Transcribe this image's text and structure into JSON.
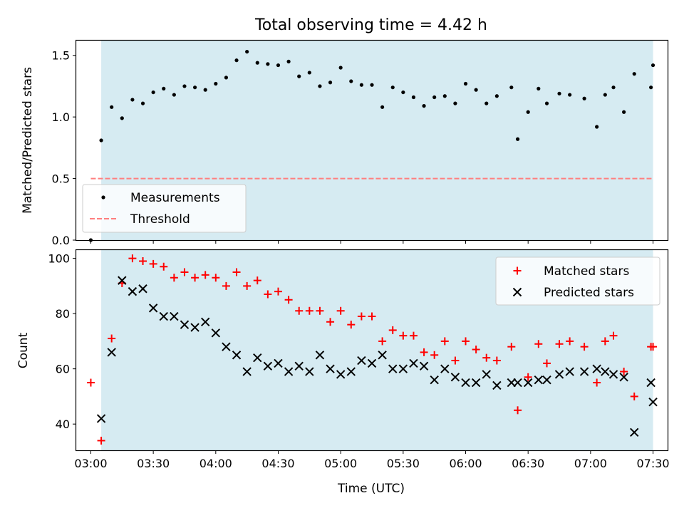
{
  "figure_title": "Total observing time = 4.42 h",
  "colors": {
    "band": "#add8e6",
    "measurement": "#000000",
    "threshold": "#ff7f7f",
    "matched": "#ff0000",
    "predicted": "#000000"
  },
  "chart_data": [
    {
      "type": "scatter",
      "panel": "top",
      "title": "Total observing time = 4.42 h",
      "xlabel": "",
      "ylabel": "Matched/Predicted stars",
      "xlim": [
        "02:53",
        "07:37"
      ],
      "ylim": [
        0,
        1.62
      ],
      "yticks": [
        0.0,
        0.5,
        1.0,
        1.5
      ],
      "ytick_labels": [
        "0.0",
        "0.5",
        "1.0",
        "1.5"
      ],
      "shaded_band": [
        "03:05",
        "07:30"
      ],
      "legend": {
        "placement": "lower-left",
        "entries": [
          "Measurements",
          "Threshold"
        ]
      },
      "series": [
        {
          "name": "Measurements",
          "marker": "dot",
          "points": [
            [
              "03:00",
              0.0
            ],
            [
              "03:05",
              0.81
            ],
            [
              "03:10",
              1.08
            ],
            [
              "03:15",
              0.99
            ],
            [
              "03:20",
              1.14
            ],
            [
              "03:25",
              1.11
            ],
            [
              "03:30",
              1.2
            ],
            [
              "03:35",
              1.23
            ],
            [
              "03:40",
              1.18
            ],
            [
              "03:45",
              1.25
            ],
            [
              "03:50",
              1.24
            ],
            [
              "03:55",
              1.22
            ],
            [
              "04:00",
              1.27
            ],
            [
              "04:05",
              1.32
            ],
            [
              "04:10",
              1.46
            ],
            [
              "04:15",
              1.53
            ],
            [
              "04:20",
              1.44
            ],
            [
              "04:25",
              1.43
            ],
            [
              "04:30",
              1.42
            ],
            [
              "04:35",
              1.45
            ],
            [
              "04:40",
              1.33
            ],
            [
              "04:45",
              1.36
            ],
            [
              "04:50",
              1.25
            ],
            [
              "04:55",
              1.28
            ],
            [
              "05:00",
              1.4
            ],
            [
              "05:05",
              1.29
            ],
            [
              "05:10",
              1.26
            ],
            [
              "05:15",
              1.26
            ],
            [
              "05:20",
              1.08
            ],
            [
              "05:25",
              1.24
            ],
            [
              "05:30",
              1.2
            ],
            [
              "05:35",
              1.16
            ],
            [
              "05:40",
              1.09
            ],
            [
              "05:45",
              1.16
            ],
            [
              "05:50",
              1.17
            ],
            [
              "05:55",
              1.11
            ],
            [
              "06:00",
              1.27
            ],
            [
              "06:05",
              1.22
            ],
            [
              "06:10",
              1.11
            ],
            [
              "06:15",
              1.17
            ],
            [
              "06:22",
              1.24
            ],
            [
              "06:25",
              0.82
            ],
            [
              "06:30",
              1.04
            ],
            [
              "06:35",
              1.23
            ],
            [
              "06:39",
              1.11
            ],
            [
              "06:45",
              1.19
            ],
            [
              "06:50",
              1.18
            ],
            [
              "06:57",
              1.15
            ],
            [
              "07:03",
              0.92
            ],
            [
              "07:07",
              1.18
            ],
            [
              "07:11",
              1.24
            ],
            [
              "07:16",
              1.04
            ],
            [
              "07:21",
              1.35
            ],
            [
              "07:29",
              1.24
            ],
            [
              "07:30",
              1.42
            ]
          ]
        },
        {
          "name": "Threshold",
          "style": "dashed",
          "points": [
            [
              "03:00",
              0.5
            ],
            [
              "07:30",
              0.5
            ]
          ]
        }
      ]
    },
    {
      "type": "scatter",
      "panel": "bottom",
      "xlabel": "Time (UTC)",
      "ylabel": "Count",
      "xlim": [
        "02:53",
        "07:37"
      ],
      "ylim": [
        30.5,
        103
      ],
      "xticks": [
        "03:00",
        "03:30",
        "04:00",
        "04:30",
        "05:00",
        "05:30",
        "06:00",
        "06:30",
        "07:00",
        "07:30"
      ],
      "yticks": [
        40,
        60,
        80,
        100
      ],
      "ytick_labels": [
        "40",
        "60",
        "80",
        "100"
      ],
      "shaded_band": [
        "03:05",
        "07:30"
      ],
      "legend": {
        "placement": "top-right",
        "entries": [
          "Matched stars",
          "Predicted stars"
        ]
      },
      "series": [
        {
          "name": "Matched stars",
          "marker": "plus",
          "points": [
            [
              "03:00",
              55
            ],
            [
              "03:05",
              34
            ],
            [
              "03:10",
              71
            ],
            [
              "03:15",
              91
            ],
            [
              "03:20",
              100
            ],
            [
              "03:25",
              99
            ],
            [
              "03:30",
              98
            ],
            [
              "03:35",
              97
            ],
            [
              "03:40",
              93
            ],
            [
              "03:45",
              95
            ],
            [
              "03:50",
              93
            ],
            [
              "03:55",
              94
            ],
            [
              "04:00",
              93
            ],
            [
              "04:05",
              90
            ],
            [
              "04:10",
              95
            ],
            [
              "04:15",
              90
            ],
            [
              "04:20",
              92
            ],
            [
              "04:25",
              87
            ],
            [
              "04:30",
              88
            ],
            [
              "04:35",
              85
            ],
            [
              "04:40",
              81
            ],
            [
              "04:45",
              81
            ],
            [
              "04:50",
              81
            ],
            [
              "04:55",
              77
            ],
            [
              "05:00",
              81
            ],
            [
              "05:05",
              76
            ],
            [
              "05:10",
              79
            ],
            [
              "05:15",
              79
            ],
            [
              "05:20",
              70
            ],
            [
              "05:25",
              74
            ],
            [
              "05:30",
              72
            ],
            [
              "05:35",
              72
            ],
            [
              "05:40",
              66
            ],
            [
              "05:45",
              65
            ],
            [
              "05:50",
              70
            ],
            [
              "05:55",
              63
            ],
            [
              "06:00",
              70
            ],
            [
              "06:05",
              67
            ],
            [
              "06:10",
              64
            ],
            [
              "06:15",
              63
            ],
            [
              "06:22",
              68
            ],
            [
              "06:25",
              45
            ],
            [
              "06:30",
              57
            ],
            [
              "06:35",
              69
            ],
            [
              "06:39",
              62
            ],
            [
              "06:45",
              69
            ],
            [
              "06:50",
              70
            ],
            [
              "06:57",
              68
            ],
            [
              "07:03",
              55
            ],
            [
              "07:07",
              70
            ],
            [
              "07:11",
              72
            ],
            [
              "07:16",
              59
            ],
            [
              "07:21",
              50
            ],
            [
              "07:29",
              68
            ],
            [
              "07:30",
              68
            ]
          ]
        },
        {
          "name": "Predicted stars",
          "marker": "x",
          "points": [
            [
              "03:05",
              42
            ],
            [
              "03:10",
              66
            ],
            [
              "03:15",
              92
            ],
            [
              "03:20",
              88
            ],
            [
              "03:25",
              89
            ],
            [
              "03:30",
              82
            ],
            [
              "03:35",
              79
            ],
            [
              "03:40",
              79
            ],
            [
              "03:45",
              76
            ],
            [
              "03:50",
              75
            ],
            [
              "03:55",
              77
            ],
            [
              "04:00",
              73
            ],
            [
              "04:05",
              68
            ],
            [
              "04:10",
              65
            ],
            [
              "04:15",
              59
            ],
            [
              "04:20",
              64
            ],
            [
              "04:25",
              61
            ],
            [
              "04:30",
              62
            ],
            [
              "04:35",
              59
            ],
            [
              "04:40",
              61
            ],
            [
              "04:45",
              59
            ],
            [
              "04:50",
              65
            ],
            [
              "04:55",
              60
            ],
            [
              "05:00",
              58
            ],
            [
              "05:05",
              59
            ],
            [
              "05:10",
              63
            ],
            [
              "05:15",
              62
            ],
            [
              "05:20",
              65
            ],
            [
              "05:25",
              60
            ],
            [
              "05:30",
              60
            ],
            [
              "05:35",
              62
            ],
            [
              "05:40",
              61
            ],
            [
              "05:45",
              56
            ],
            [
              "05:50",
              60
            ],
            [
              "05:55",
              57
            ],
            [
              "06:00",
              55
            ],
            [
              "06:05",
              55
            ],
            [
              "06:10",
              58
            ],
            [
              "06:15",
              54
            ],
            [
              "06:22",
              55
            ],
            [
              "06:25",
              55
            ],
            [
              "06:30",
              55
            ],
            [
              "06:35",
              56
            ],
            [
              "06:39",
              56
            ],
            [
              "06:45",
              58
            ],
            [
              "06:50",
              59
            ],
            [
              "06:57",
              59
            ],
            [
              "07:03",
              60
            ],
            [
              "07:07",
              59
            ],
            [
              "07:11",
              58
            ],
            [
              "07:16",
              57
            ],
            [
              "07:21",
              37
            ],
            [
              "07:29",
              55
            ],
            [
              "07:30",
              48
            ]
          ]
        }
      ]
    }
  ]
}
